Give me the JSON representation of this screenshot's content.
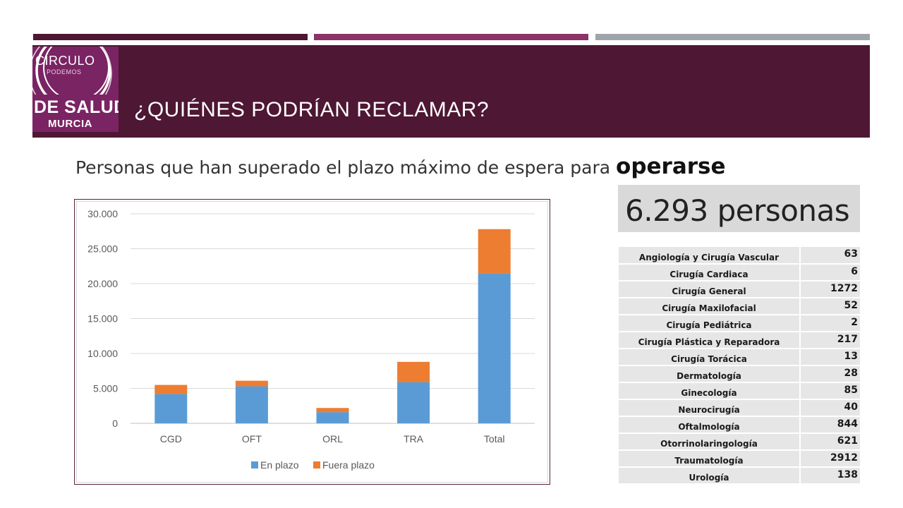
{
  "colors": {
    "bar_dark": "#4e1733",
    "bar_mid": "#8b3467",
    "bar_light": "#9ea4a9",
    "header_bg": "#4e1733",
    "logo_bg": "#7a2464",
    "series_en_plazo": "#5b9bd5",
    "series_fuera_plazo": "#ed7d31"
  },
  "logo": {
    "line1": "CÍRCULO",
    "line2": "PODEMOS",
    "line3": "DE SALUD",
    "line4": "MURCIA"
  },
  "header": {
    "title": "¿QUIÉNES PODRÍAN RECLAMAR?"
  },
  "subtitle": {
    "text": "Personas que han superado el plazo máximo de espera para ",
    "emphasis": "operarse"
  },
  "summary": {
    "total": "6.293 personas"
  },
  "chart_data": {
    "type": "bar",
    "stacked": true,
    "categories": [
      "CGD",
      "OFT",
      "ORL",
      "TRA",
      "Total"
    ],
    "series": [
      {
        "name": "En plazo",
        "values": [
          4200,
          5300,
          1600,
          5900,
          21500
        ]
      },
      {
        "name": "Fuera plazo",
        "values": [
          1300,
          800,
          600,
          2900,
          6300
        ]
      }
    ],
    "ylim": [
      0,
      30000
    ],
    "yticks": [
      "0",
      "5.000",
      "10.000",
      "15.000",
      "20.000",
      "25.000",
      "30.000"
    ],
    "grid": true,
    "legend": "bottom"
  },
  "table": {
    "rows": [
      {
        "name": "Angiología y Cirugía Vascular",
        "value": "63"
      },
      {
        "name": "Cirugía Cardiaca",
        "value": "6"
      },
      {
        "name": "Cirugía General",
        "value": "1272"
      },
      {
        "name": "Cirugía Maxilofacial",
        "value": "52"
      },
      {
        "name": "Cirugía Pediátrica",
        "value": "2"
      },
      {
        "name": "Cirugía Plástica y Reparadora",
        "value": "217"
      },
      {
        "name": "Cirugía Torácica",
        "value": "13"
      },
      {
        "name": "Dermatología",
        "value": "28"
      },
      {
        "name": "Ginecología",
        "value": "85"
      },
      {
        "name": "Neurocirugía",
        "value": "40"
      },
      {
        "name": "Oftalmología",
        "value": "844"
      },
      {
        "name": "Otorrinolaringología",
        "value": "621"
      },
      {
        "name": "Traumatología",
        "value": "2912"
      },
      {
        "name": "Urología",
        "value": "138"
      }
    ]
  }
}
